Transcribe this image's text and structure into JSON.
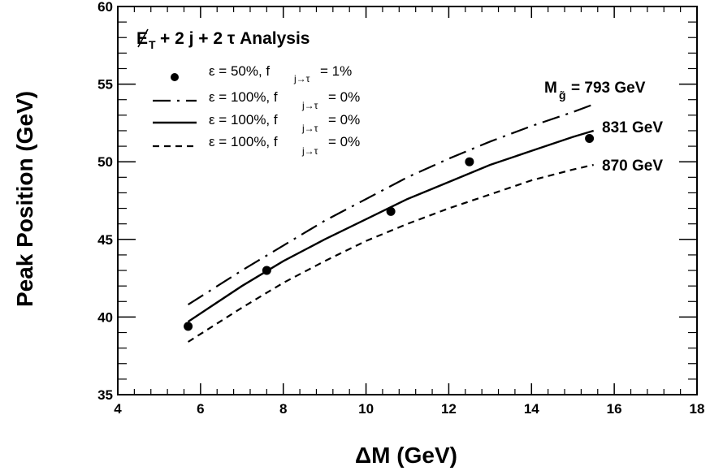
{
  "chart_data": {
    "type": "line",
    "title_main": "E",
    "title_sub": "T",
    "title_rest": "+ 2 j + 2 τ Analysis",
    "xlabel": "ΔM (GeV)",
    "ylabel": "Peak Position (GeV)",
    "xlim": [
      4,
      18
    ],
    "ylim": [
      35,
      60
    ],
    "x_ticks": [
      4,
      6,
      8,
      10,
      12,
      14,
      16,
      18
    ],
    "y_ticks": [
      35,
      40,
      45,
      50,
      55,
      60
    ],
    "grid": false,
    "legend_position": "top-left",
    "series": [
      {
        "name": "ε = 50%, f",
        "name_sub": "j→τ",
        "name_rest": "= 1%",
        "style": "marker",
        "x": [
          5.7,
          7.6,
          10.6,
          12.5,
          15.4
        ],
        "y": [
          39.4,
          43.0,
          46.8,
          50.0,
          51.5
        ]
      },
      {
        "name": "ε = 100%, f",
        "name_sub": "j→τ",
        "name_rest": "= 0%",
        "style": "dashdot",
        "x": [
          5.7,
          7.0,
          8.0,
          9.0,
          10.0,
          11.0,
          12.0,
          13.0,
          14.0,
          15.0,
          15.5
        ],
        "y": [
          40.8,
          43.0,
          44.6,
          46.2,
          47.6,
          49.0,
          50.2,
          51.3,
          52.3,
          53.2,
          53.7
        ]
      },
      {
        "name": "ε = 100%, f",
        "name_sub": "j→τ",
        "name_rest": "= 0%",
        "style": "solid",
        "x": [
          5.7,
          7.0,
          8.0,
          9.0,
          10.0,
          11.0,
          12.0,
          13.0,
          14.0,
          15.0,
          15.5
        ],
        "y": [
          39.7,
          42.0,
          43.6,
          45.0,
          46.3,
          47.6,
          48.7,
          49.8,
          50.7,
          51.6,
          52.0
        ]
      },
      {
        "name": "ε = 100%, f",
        "name_sub": "j→τ",
        "name_rest": "= 0%",
        "style": "dashed",
        "x": [
          5.7,
          7.0,
          8.0,
          9.0,
          10.0,
          11.0,
          12.0,
          13.0,
          14.0,
          15.0,
          15.5
        ],
        "y": [
          38.4,
          40.6,
          42.2,
          43.6,
          44.9,
          46.0,
          47.0,
          47.9,
          48.8,
          49.5,
          49.8
        ]
      }
    ],
    "annotations": [
      {
        "text": "M",
        "sub": "g̃",
        "rest": "= 793 GeV",
        "y": 54.7
      },
      {
        "text": "831 GeV",
        "y": 52.1
      },
      {
        "text": "870 GeV",
        "y": 49.8
      }
    ]
  }
}
